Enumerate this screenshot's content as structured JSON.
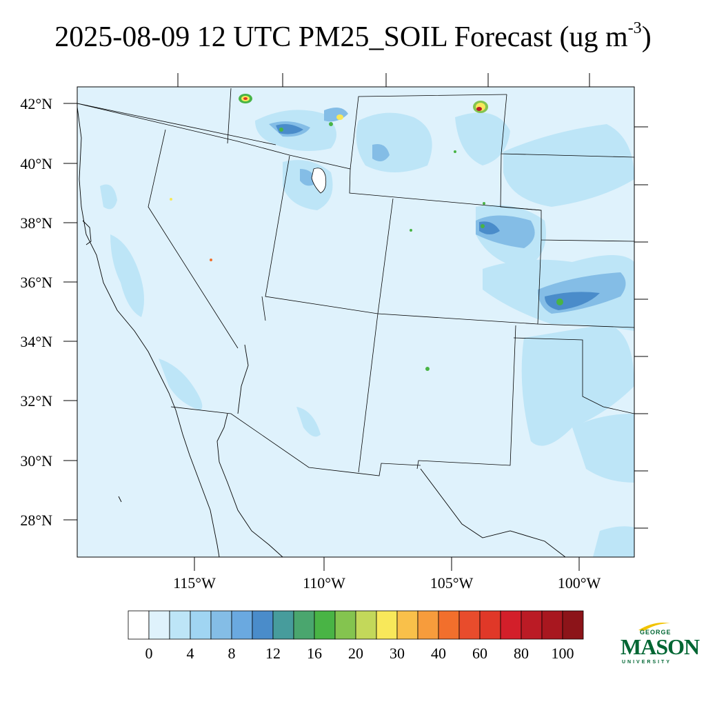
{
  "title": {
    "main": "2025-08-09 12 UTC PM25_SOIL Forecast (ug m",
    "sup": "-3",
    "close": ")"
  },
  "map": {
    "lat_labels": [
      "42°N",
      "40°N",
      "38°N",
      "36°N",
      "34°N",
      "32°N",
      "30°N",
      "28°N"
    ],
    "lon_labels": [
      "115°W",
      "110°W",
      "105°W",
      "100°W"
    ],
    "background_color": "#dff2fc"
  },
  "legend": {
    "colors": [
      "#ffffff",
      "#dff2fc",
      "#bde5f7",
      "#a0d5f2",
      "#84bde6",
      "#6aa9e0",
      "#4a8cca",
      "#479c9c",
      "#4aa66e",
      "#49b445",
      "#84c44f",
      "#c3d85a",
      "#f8e85a",
      "#f9c04a",
      "#f79c3c",
      "#f26f2c",
      "#e84c2c",
      "#e03828",
      "#d31f2a",
      "#bb1b25",
      "#a8171f",
      "#8c1419"
    ],
    "labels": [
      "0",
      "4",
      "8",
      "12",
      "16",
      "20",
      "30",
      "40",
      "60",
      "80",
      "100"
    ]
  },
  "logo": {
    "top": "GEORGE",
    "main": "MASON",
    "bottom": "UNIVERSITY"
  }
}
